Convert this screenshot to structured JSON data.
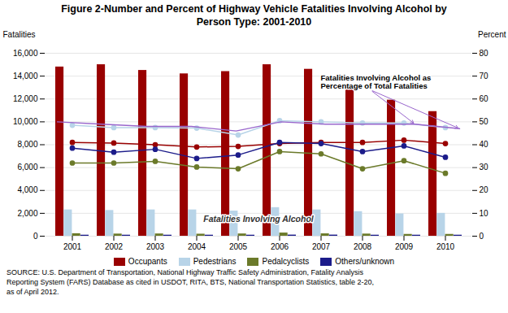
{
  "chart_data": {
    "type": "bar",
    "title": "Figure 2-Number and Percent of Highway Vehicle Fatalities Involving Alcohol by\nPerson Type: 2001-2010",
    "categories": [
      "2001",
      "2002",
      "2003",
      "2004",
      "2005",
      "2006",
      "2007",
      "2008",
      "2009",
      "2010"
    ],
    "series": [
      {
        "name": "Occupants",
        "type": "bar",
        "color": "#990000",
        "values": [
          14800,
          15000,
          14500,
          14200,
          14400,
          15000,
          14600,
          13000,
          11900,
          10900
        ]
      },
      {
        "name": "Pedestrians",
        "type": "bar",
        "color": "#B8D4E8",
        "values": [
          2300,
          2250,
          2300,
          2300,
          2200,
          2500,
          2300,
          2150,
          1950,
          2000
        ]
      },
      {
        "name": "Pedalcyclists",
        "type": "bar",
        "color": "#6B7A2A",
        "values": [
          220,
          190,
          200,
          180,
          200,
          280,
          210,
          190,
          160,
          160
        ]
      },
      {
        "name": "Others/unknown",
        "type": "bar",
        "color": "#1C1C8A",
        "values": [
          90,
          90,
          90,
          90,
          90,
          100,
          100,
          90,
          90,
          90
        ]
      },
      {
        "name": "Occupants",
        "type": "line",
        "marker": "circle",
        "color": "#990000",
        "values": [
          8200,
          8150,
          8000,
          7800,
          7850,
          8100,
          8200,
          8200,
          8400,
          8100
        ]
      },
      {
        "name": "Pedestrians",
        "type": "line",
        "marker": "circle",
        "color": "#B8D4E8",
        "values": [
          9700,
          9500,
          9500,
          9450,
          8850,
          10100,
          10000,
          9900,
          9900,
          9500
        ]
      },
      {
        "name": "Pedalcyclists",
        "type": "line",
        "marker": "circle",
        "color": "#6B7A2A",
        "values": [
          6400,
          6400,
          6550,
          6050,
          5900,
          7400,
          7200,
          5900,
          6600,
          5500
        ]
      },
      {
        "name": "Others/unknown",
        "type": "line",
        "marker": "circle",
        "color": "#1C1C8A",
        "values": [
          7700,
          7350,
          7600,
          6800,
          7100,
          8200,
          8100,
          7400,
          7900,
          6900
        ]
      },
      {
        "type": "line",
        "axis": "y2",
        "color": "#9966CC",
        "values": [
          50,
          49,
          48,
          48,
          46,
          50,
          49,
          49,
          49,
          47
        ]
      }
    ],
    "ylabel": "Fatalities",
    "y2label": "Percent",
    "ylim": [
      0,
      16000
    ],
    "yticks": [
      0,
      {
        "value": 2000,
        "label": "2,000"
      },
      {
        "value": 4000,
        "label": "4,000"
      },
      {
        "value": 6000,
        "label": "6,000"
      },
      {
        "value": 8000,
        "label": "8,000"
      },
      {
        "value": 10000,
        "label": "10,000"
      },
      {
        "value": 12000,
        "label": "12,000"
      },
      {
        "value": 14000,
        "label": "14,000"
      },
      {
        "value": 16000,
        "label": "16,000"
      }
    ],
    "y2lim": [
      0,
      80
    ],
    "y2ticks": [
      0,
      10,
      20,
      30,
      40,
      50,
      60,
      70,
      80
    ],
    "grid": true,
    "legend": "bottom",
    "annotations": [
      {
        "text": "Fatalities Involving Alcohol"
      },
      {
        "text": "Fatalities Involving Alcohol as\nPercentage of Total Fatalities",
        "axis": "y2"
      }
    ],
    "caption": "SOURCE: U.S. Department of Transportation, National Highway Traffic Safety Administration, Fatality Analysis\nReporting System (FARS) Database as cited in USDOT, RITA, BTS, National Transportation Statistics, table 2-20,\nas of April 2012."
  }
}
